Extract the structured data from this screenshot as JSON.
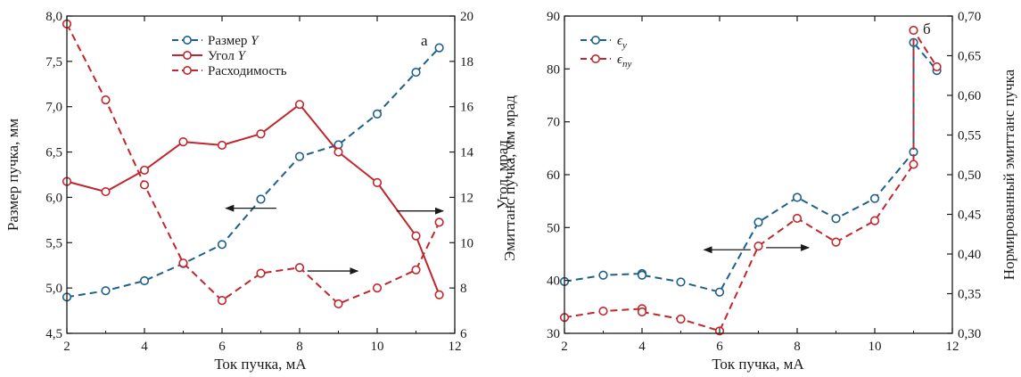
{
  "colors": {
    "blue": "#1f5f8b",
    "red": "#c0272d",
    "axis": "#1a1a1a"
  },
  "chart_data": [
    {
      "type": "line",
      "panel_letter": "а",
      "xlabel": "Ток пучка, мА",
      "ylabel_left": "Размер пучка, мм",
      "ylabel_right": "Угол, мрад",
      "xlim": [
        2,
        12
      ],
      "ylim_left": [
        4.5,
        8.0
      ],
      "ylim_right": [
        6,
        20
      ],
      "x_ticks": [
        2,
        4,
        6,
        8,
        10,
        12
      ],
      "x_tick_labels": [
        "2",
        "4",
        "6",
        "8",
        "10",
        "12"
      ],
      "y_left_ticks": [
        4.5,
        5.0,
        5.5,
        6.0,
        6.5,
        7.0,
        7.5,
        8.0
      ],
      "y_left_tick_labels": [
        "4,5",
        "5,0",
        "5,5",
        "6,0",
        "6,5",
        "7,0",
        "7,5",
        "8,0"
      ],
      "y_right_ticks": [
        6,
        8,
        10,
        12,
        14,
        16,
        18,
        20
      ],
      "y_right_tick_labels": [
        "6",
        "8",
        "10",
        "12",
        "14",
        "16",
        "18",
        "20"
      ],
      "grid": false,
      "legend_position": "top-center",
      "series": [
        {
          "name": "Размер",
          "name_italic": "Y",
          "axis": "left",
          "color": "blue",
          "dash": true,
          "x": [
            2,
            3,
            4,
            5,
            6,
            7,
            8,
            9,
            10,
            11,
            11.6
          ],
          "y": [
            4.9,
            4.97,
            5.08,
            5.27,
            5.48,
            5.98,
            6.45,
            6.58,
            6.92,
            7.38,
            7.65
          ]
        },
        {
          "name": "Угол",
          "name_italic": "Y",
          "axis": "right",
          "color": "red",
          "dash": false,
          "x": [
            2,
            3,
            4,
            5,
            6,
            7,
            8,
            9,
            10,
            11,
            11.6
          ],
          "y": [
            12.7,
            12.25,
            13.2,
            14.45,
            14.3,
            14.8,
            16.1,
            14.0,
            12.65,
            10.3,
            7.7
          ]
        },
        {
          "name": "Расходимость",
          "name_italic": "",
          "axis": "right",
          "color": "red",
          "dash": true,
          "x": [
            2,
            3,
            4,
            5,
            6,
            7,
            8,
            9,
            10,
            11,
            11.6
          ],
          "y": [
            19.65,
            16.3,
            12.55,
            9.1,
            7.45,
            8.65,
            8.9,
            7.3,
            8.0,
            8.8,
            10.9
          ]
        }
      ],
      "annotations": [
        {
          "arrow": "left",
          "data_x": [
            7.4,
            6.1
          ],
          "data_y_left": 5.88
        },
        {
          "arrow": "right",
          "data_x": [
            10.5,
            11.7
          ],
          "data_y_right": 11.4
        },
        {
          "arrow": "right",
          "data_x": [
            8.2,
            9.5
          ],
          "data_y_right": 8.75
        }
      ]
    },
    {
      "type": "line",
      "panel_letter": "б",
      "xlabel": "Ток пучка, мА",
      "ylabel_left": "Эмиттанс пучка, мм мрад",
      "ylabel_right": "Нормированный эмиттанс пучка",
      "xlim": [
        2,
        12
      ],
      "ylim_left": [
        30,
        90
      ],
      "ylim_right": [
        0.3,
        0.7
      ],
      "x_ticks": [
        2,
        4,
        6,
        8,
        10,
        12
      ],
      "x_tick_labels": [
        "2",
        "4",
        "6",
        "8",
        "10",
        "12"
      ],
      "y_left_ticks": [
        30,
        40,
        50,
        60,
        70,
        80,
        90
      ],
      "y_left_tick_labels": [
        "30",
        "40",
        "50",
        "60",
        "70",
        "80",
        "90"
      ],
      "y_right_ticks": [
        0.3,
        0.35,
        0.4,
        0.45,
        0.5,
        0.55,
        0.6,
        0.65,
        0.7
      ],
      "y_right_tick_labels": [
        "0,30",
        "0,35",
        "0,40",
        "0,45",
        "0,50",
        "0,55",
        "0,60",
        "0,65",
        "0,70"
      ],
      "grid": false,
      "legend_position": "top-left",
      "series": [
        {
          "name": "ϵy",
          "name_base": "ϵ",
          "name_sub": "y",
          "axis": "left",
          "color": "blue",
          "dash": true,
          "x": [
            2,
            3,
            4,
            4,
            5,
            6,
            7,
            8,
            9,
            10,
            11,
            11,
            11.6
          ],
          "y": [
            39.8,
            41.0,
            41.3,
            41.0,
            39.7,
            37.8,
            51.0,
            55.7,
            51.7,
            55.5,
            64.3,
            85.0,
            79.7
          ]
        },
        {
          "name": "ϵny",
          "name_base": "ϵ",
          "name_sub": "ny",
          "axis": "right",
          "color": "red",
          "dash": true,
          "x": [
            2,
            3,
            4,
            4,
            5,
            6,
            7,
            8,
            9,
            10,
            11,
            11,
            11.6
          ],
          "y": [
            0.32,
            0.328,
            0.331,
            0.327,
            0.318,
            0.303,
            0.41,
            0.445,
            0.415,
            0.442,
            0.513,
            0.682,
            0.636
          ]
        }
      ],
      "annotations": [
        {
          "arrow": "left",
          "data_x": [
            6.8,
            5.6
          ],
          "data_y_left": 45.8
        },
        {
          "arrow": "right",
          "data_x": [
            7.2,
            8.3
          ],
          "data_y_right": 0.408
        }
      ]
    }
  ]
}
